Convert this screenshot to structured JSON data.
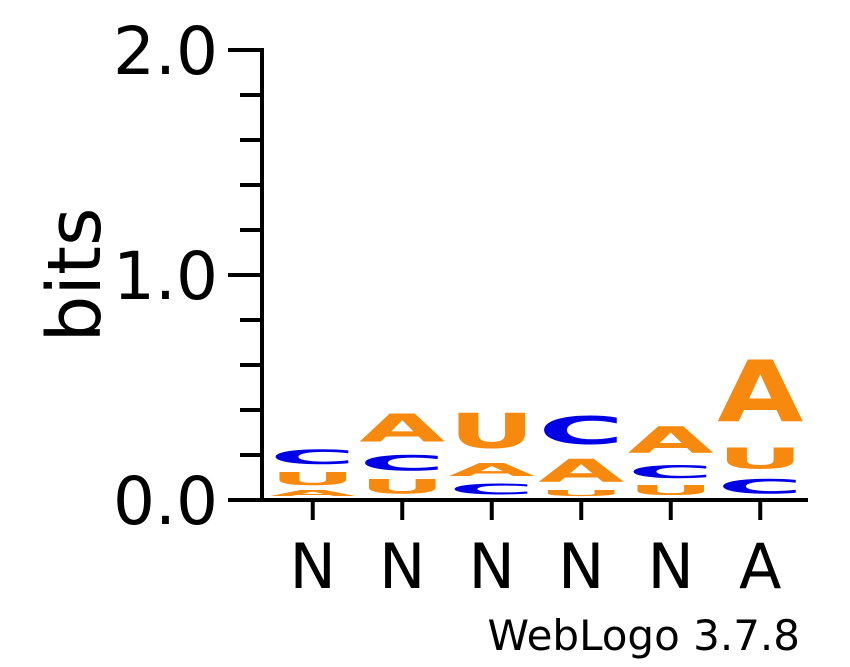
{
  "chart_data": {
    "type": "sequence-logo",
    "ylabel": "bits",
    "ylim": [
      0,
      2.0
    ],
    "ytick_labels": [
      "0.0",
      "1.0",
      "2.0"
    ],
    "yticks": [
      0.0,
      1.0,
      2.0
    ],
    "colors": {
      "A": "#f7890e",
      "U": "#f7890e",
      "C": "#0000e6",
      "G": "#f7890e"
    },
    "positions": [
      {
        "label": "N",
        "stack": [
          {
            "letter": "A",
            "bits": 0.04
          },
          {
            "letter": "U",
            "bits": 0.09
          },
          {
            "letter": "C",
            "bits": 0.1
          }
        ]
      },
      {
        "label": "N",
        "stack": [
          {
            "letter": "U",
            "bits": 0.1
          },
          {
            "letter": "C",
            "bits": 0.11
          },
          {
            "letter": "A",
            "bits": 0.2
          }
        ]
      },
      {
        "label": "N",
        "stack": [
          {
            "letter": "C",
            "bits": 0.08
          },
          {
            "letter": "A",
            "bits": 0.09
          },
          {
            "letter": "U",
            "bits": 0.25
          }
        ]
      },
      {
        "label": "N",
        "stack": [
          {
            "letter": "U",
            "bits": 0.04
          },
          {
            "letter": "A",
            "bits": 0.16
          },
          {
            "letter": "C",
            "bits": 0.2
          }
        ]
      },
      {
        "label": "N",
        "stack": [
          {
            "letter": "U",
            "bits": 0.07
          },
          {
            "letter": "C",
            "bits": 0.09
          },
          {
            "letter": "A",
            "bits": 0.19
          }
        ]
      },
      {
        "label": "A",
        "stack": [
          {
            "letter": "C",
            "bits": 0.1
          },
          {
            "letter": "U",
            "bits": 0.15
          },
          {
            "letter": "A",
            "bits": 0.44
          }
        ]
      }
    ]
  },
  "footer": {
    "credit": "WebLogo 3.7.8"
  }
}
